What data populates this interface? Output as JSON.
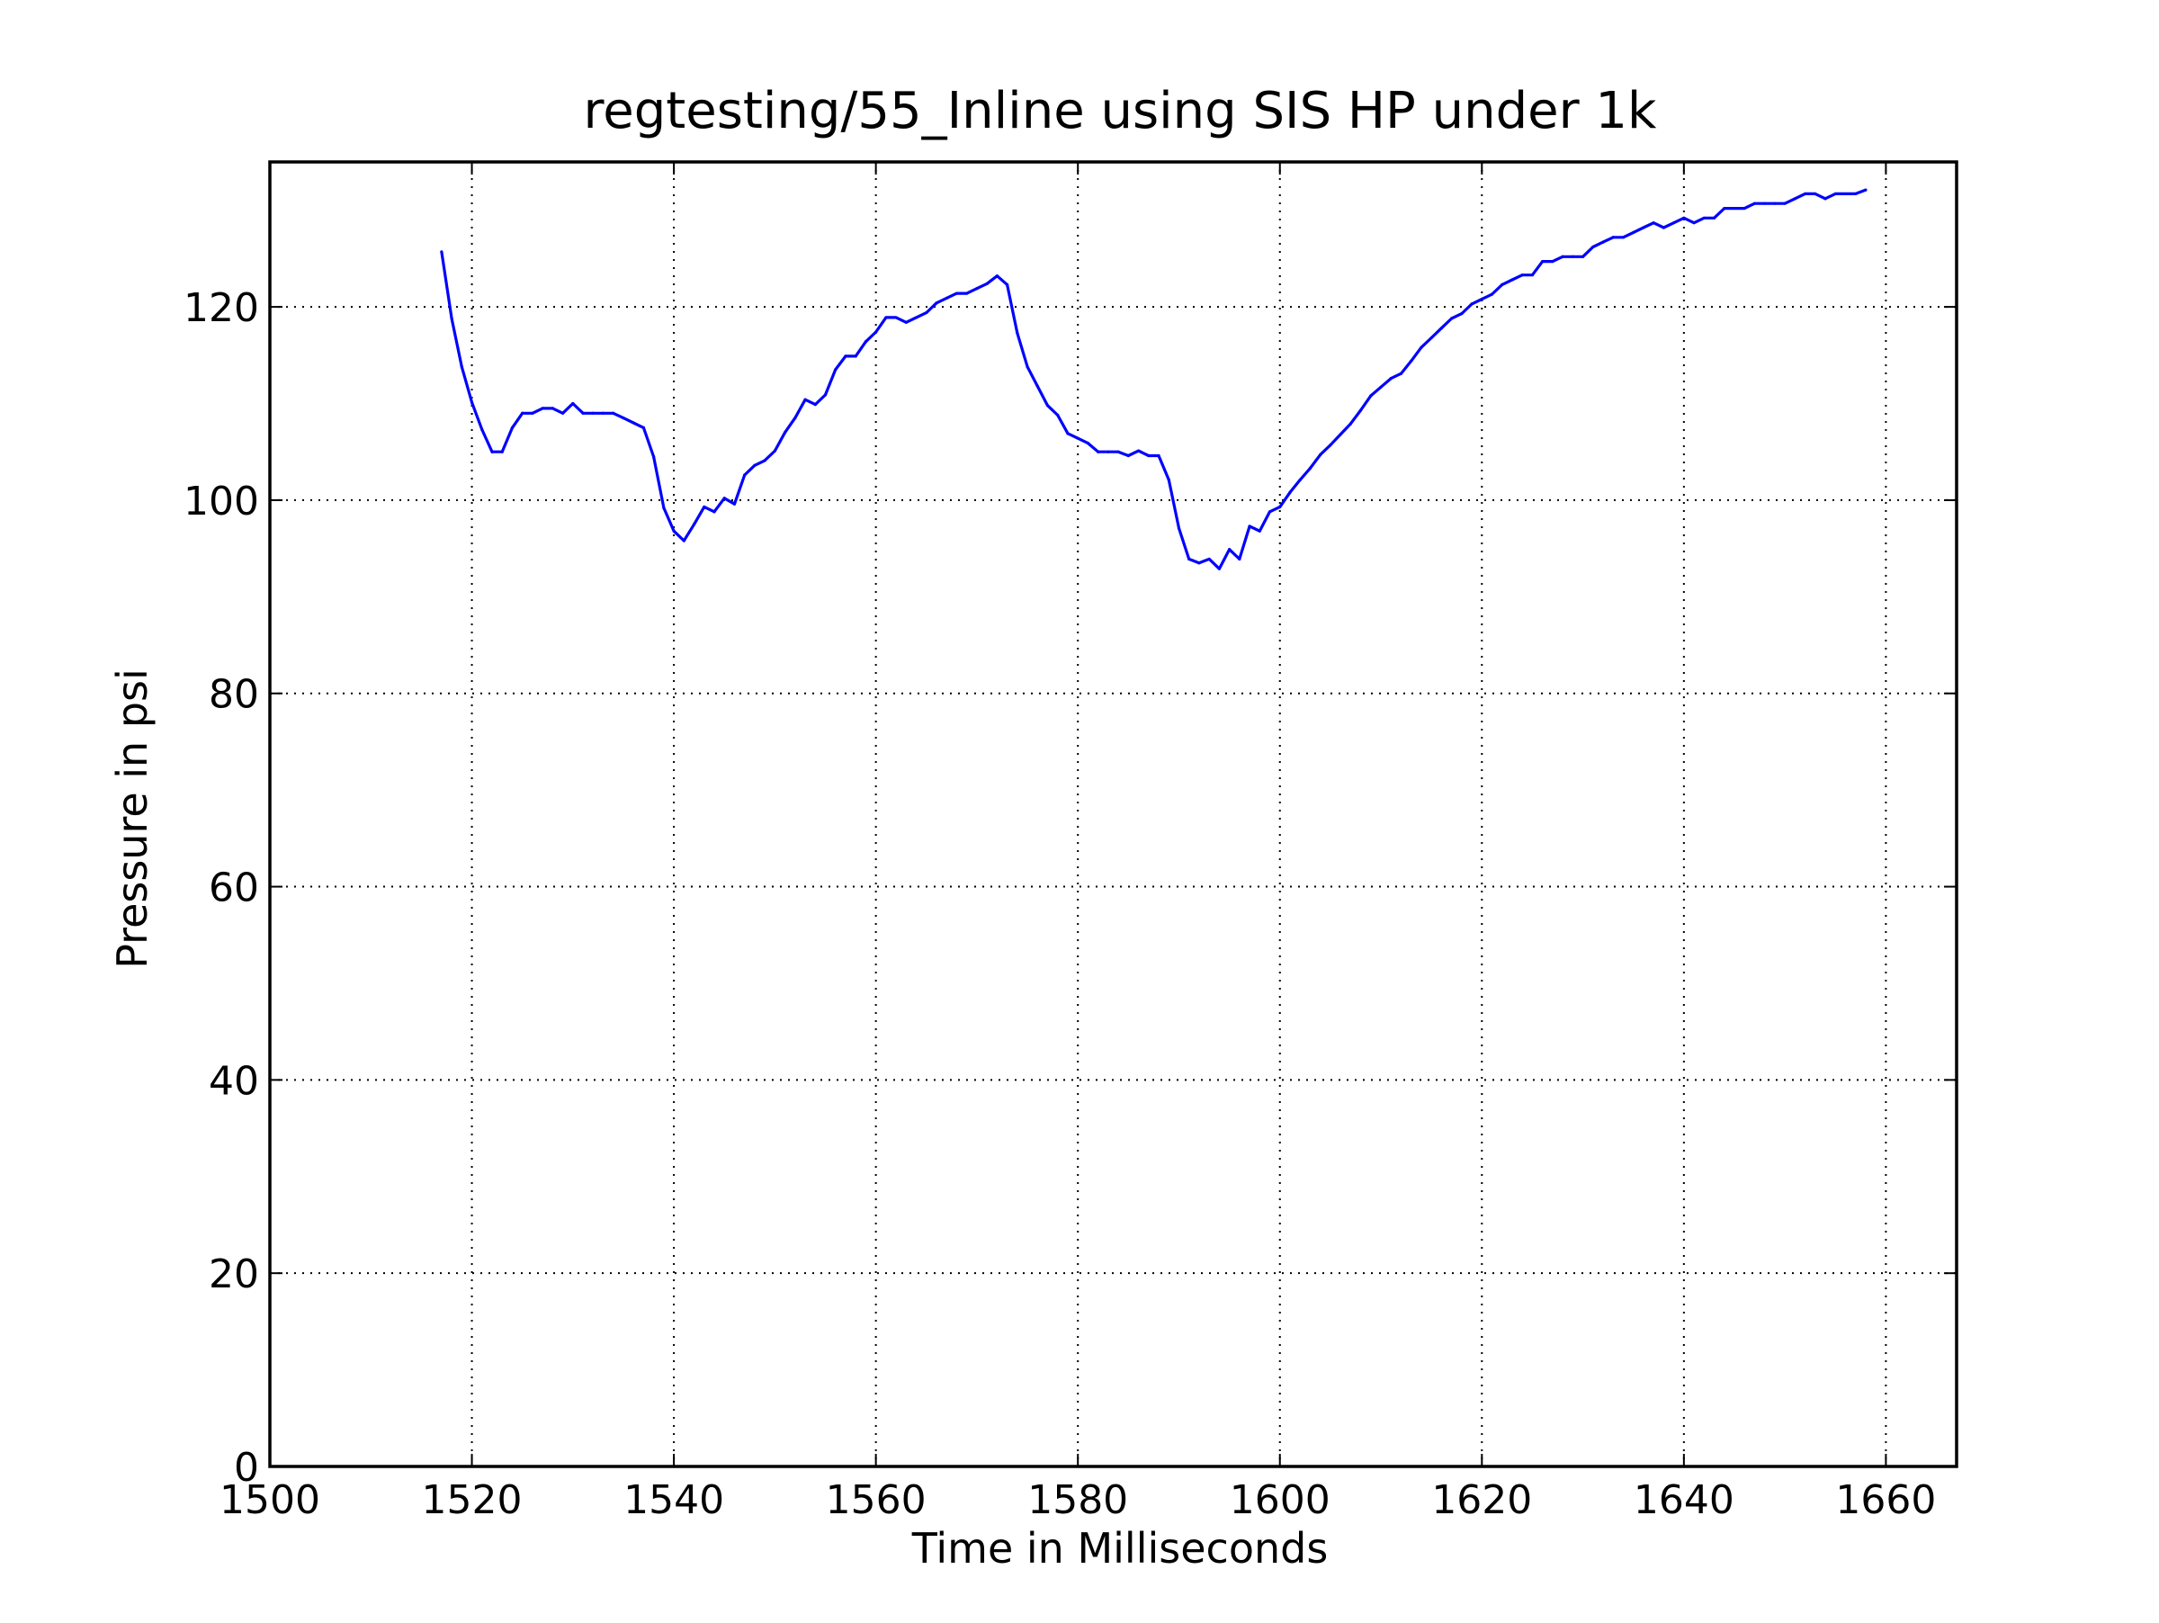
{
  "chart_data": {
    "type": "line",
    "title": "regtesting/55_Inline using SIS HP under 1k",
    "xlabel": "Time in Milliseconds",
    "ylabel": "Pressure in psi",
    "xlim": [
      1500,
      1667
    ],
    "ylim": [
      0,
      135
    ],
    "xticks": [
      1500,
      1520,
      1540,
      1560,
      1580,
      1600,
      1620,
      1640,
      1660
    ],
    "yticks": [
      0,
      20,
      40,
      60,
      80,
      100,
      120
    ],
    "grid": true,
    "grid_style": "dotted",
    "line_color": "#0000ff",
    "series": [
      {
        "x": [
          1517,
          1518,
          1519,
          1520,
          1521,
          1522,
          1523,
          1524,
          1525,
          1526,
          1527,
          1528,
          1529,
          1530,
          1531,
          1532,
          1533,
          1534,
          1535,
          1536,
          1537,
          1538,
          1539,
          1540,
          1541,
          1542,
          1543,
          1544,
          1545,
          1546,
          1547,
          1548,
          1549,
          1550,
          1551,
          1552,
          1553,
          1554,
          1555,
          1556,
          1557,
          1558,
          1559,
          1560,
          1561,
          1562,
          1563,
          1564,
          1565,
          1566,
          1567,
          1568,
          1569,
          1570,
          1571,
          1572,
          1573,
          1574,
          1575,
          1576,
          1577,
          1578,
          1579,
          1580,
          1581,
          1582,
          1583,
          1584,
          1585,
          1586,
          1587,
          1588,
          1589,
          1590,
          1591,
          1592,
          1593,
          1594,
          1595,
          1596,
          1597,
          1598,
          1599,
          1600,
          1601,
          1602,
          1603,
          1604,
          1605,
          1606,
          1607,
          1608,
          1609,
          1610,
          1611,
          1612,
          1613,
          1614,
          1615,
          1616,
          1617,
          1618,
          1619,
          1620,
          1621,
          1622,
          1623,
          1624,
          1625,
          1626,
          1627,
          1628,
          1629,
          1630,
          1631,
          1632,
          1633,
          1634,
          1635,
          1636,
          1637,
          1638,
          1639,
          1640,
          1641,
          1642,
          1643,
          1644,
          1645,
          1646,
          1647,
          1648,
          1649,
          1650,
          1651,
          1652,
          1653,
          1654,
          1655,
          1656,
          1657,
          1658
        ],
        "values": [
          125.7,
          118.8,
          113.8,
          110.1,
          107.3,
          105.0,
          105.0,
          107.5,
          109.0,
          109.0,
          109.5,
          109.5,
          109.0,
          110.0,
          109.0,
          109.0,
          109.0,
          109.0,
          108.5,
          108.0,
          107.5,
          104.5,
          99.2,
          96.8,
          95.8,
          97.5,
          99.3,
          98.8,
          100.2,
          99.6,
          102.6,
          103.6,
          104.1,
          105.1,
          107.0,
          108.5,
          110.4,
          109.9,
          110.9,
          113.5,
          114.9,
          114.9,
          116.4,
          117.4,
          118.9,
          118.9,
          118.4,
          118.9,
          119.4,
          120.4,
          120.9,
          121.4,
          121.4,
          121.9,
          122.4,
          123.2,
          122.3,
          117.3,
          113.8,
          111.8,
          109.8,
          108.8,
          106.9,
          106.4,
          105.9,
          105.0,
          105.0,
          105.0,
          104.6,
          105.1,
          104.6,
          104.6,
          102.1,
          97.1,
          93.9,
          93.5,
          93.9,
          92.9,
          94.9,
          93.9,
          97.3,
          96.8,
          98.8,
          99.3,
          100.8,
          102.1,
          103.3,
          104.7,
          105.7,
          106.8,
          107.9,
          109.3,
          110.8,
          111.7,
          112.6,
          113.1,
          114.4,
          115.8,
          116.8,
          117.8,
          118.8,
          119.3,
          120.3,
          120.8,
          121.3,
          122.3,
          122.8,
          123.3,
          123.3,
          124.7,
          124.7,
          125.2,
          125.2,
          125.2,
          126.2,
          126.7,
          127.2,
          127.2,
          127.7,
          128.2,
          128.7,
          128.2,
          128.7,
          129.2,
          128.7,
          129.2,
          129.2,
          130.2,
          130.2,
          130.2,
          130.7,
          130.7,
          130.7,
          130.7,
          131.2,
          131.7,
          131.7,
          131.2,
          131.7,
          131.7,
          131.7,
          132.1
        ]
      }
    ]
  }
}
